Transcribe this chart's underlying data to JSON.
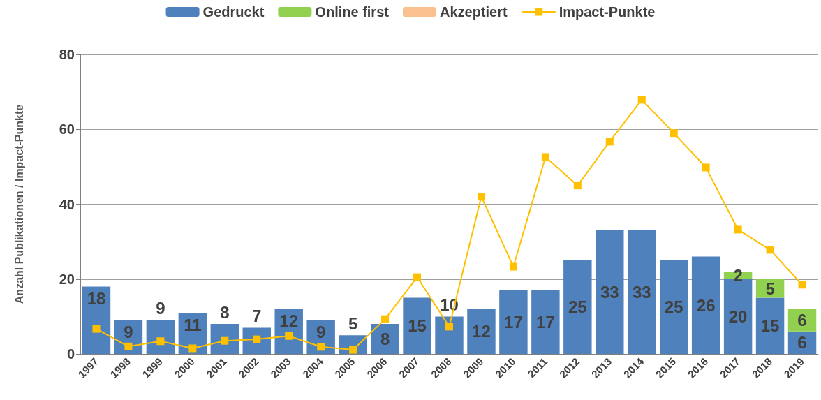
{
  "chart_data": {
    "type": "bar",
    "ylabel": "Anzahl Publikationen / Impact-Punkte",
    "categories": [
      "1997",
      "1998",
      "1999",
      "2000",
      "2001",
      "2002",
      "2003",
      "2004",
      "2005",
      "2006",
      "2007",
      "2008",
      "2009",
      "2010",
      "2011",
      "2012",
      "2013",
      "2014",
      "2015",
      "2016",
      "2017",
      "2018",
      "2019"
    ],
    "stacked": true,
    "ylim": [
      0,
      80
    ],
    "yticks": [
      0,
      20,
      40,
      60,
      80
    ],
    "grid": "y",
    "legend": "top",
    "series": [
      {
        "name": "Gedruckt",
        "color": "#4f81bd",
        "values": [
          18,
          9,
          9,
          11,
          8,
          7,
          12,
          9,
          5,
          8,
          15,
          10,
          12,
          17,
          17,
          25,
          33,
          33,
          25,
          26,
          20,
          15,
          6
        ],
        "value_labels": [
          "18",
          "9",
          "9",
          "11",
          "8",
          "7",
          "12",
          "9",
          "5",
          "8",
          "15",
          "10",
          "12",
          "17",
          "17",
          "25",
          "33",
          "33",
          "25",
          "26",
          "20",
          "15",
          "6"
        ]
      },
      {
        "name": "Online first",
        "color": "#92d050",
        "values": [
          null,
          null,
          null,
          null,
          null,
          null,
          null,
          null,
          null,
          null,
          null,
          null,
          null,
          null,
          null,
          null,
          null,
          null,
          null,
          null,
          2,
          5,
          6
        ],
        "value_labels": [
          null,
          null,
          null,
          null,
          null,
          null,
          null,
          null,
          null,
          null,
          null,
          null,
          null,
          null,
          null,
          null,
          null,
          null,
          null,
          null,
          "2",
          "5",
          "6"
        ]
      },
      {
        "name": "Akzeptiert",
        "color": "#fac090",
        "values": [
          null,
          null,
          null,
          null,
          null,
          null,
          null,
          null,
          null,
          null,
          null,
          null,
          null,
          null,
          null,
          null,
          null,
          null,
          null,
          null,
          null,
          null,
          null
        ]
      },
      {
        "name": "Impact-Punkte",
        "type": "line",
        "color": "#ffc000",
        "marker": "square",
        "values": [
          6.7,
          2.0,
          3.4,
          1.5,
          3.5,
          3.9,
          4.8,
          1.9,
          1.1,
          9.3,
          20.5,
          7.3,
          42,
          23.3,
          52.6,
          45,
          56.7,
          67.9,
          59,
          49.8,
          33.2,
          27.8,
          18.5
        ]
      }
    ]
  }
}
